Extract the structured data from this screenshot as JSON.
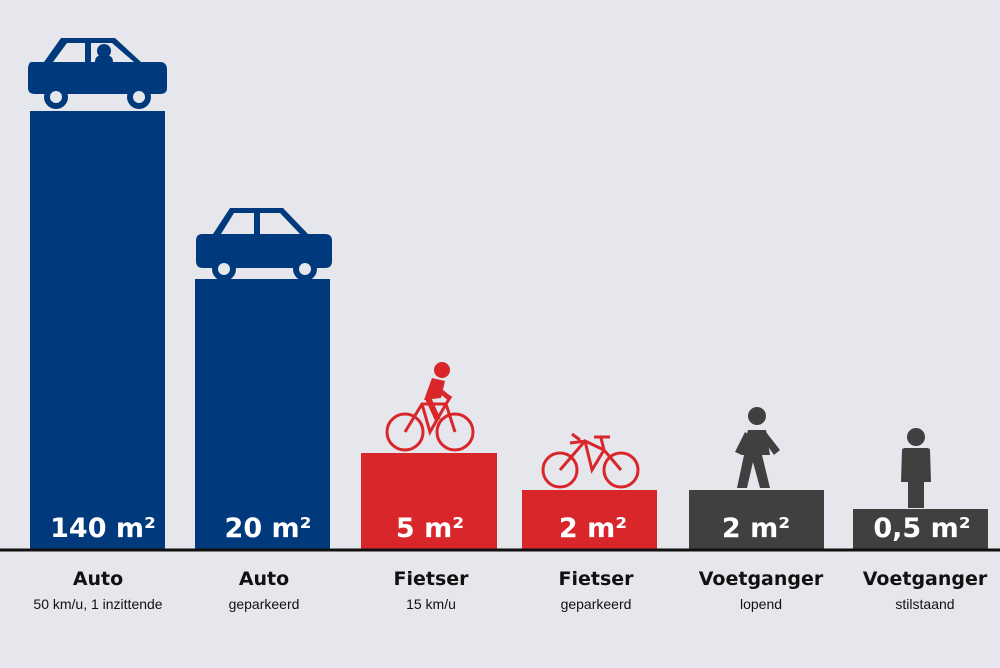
{
  "chart_data": {
    "type": "bar",
    "categories": [
      "Auto",
      "Auto",
      "Fietser",
      "Fietser",
      "Voetganger",
      "Voetganger"
    ],
    "subtitles": [
      "50 km/u, 1 inzittende",
      "geparkeerd",
      "15 km/u",
      "geparkeerd",
      "lopend",
      "stilstaand"
    ],
    "value_labels": [
      "140 m²",
      "20 m²",
      "5 m²",
      "2 m²",
      "2 m²",
      "0,5 m²"
    ],
    "bar_colors": [
      "#003a7d",
      "#003a7d",
      "#d8262a",
      "#d8262a",
      "#404040",
      "#404040"
    ],
    "icons": [
      "car-icon",
      "car-icon",
      "cyclist-icon",
      "bicycle-icon",
      "walking-person-icon",
      "standing-person-icon"
    ],
    "axis_color": "#111111"
  }
}
